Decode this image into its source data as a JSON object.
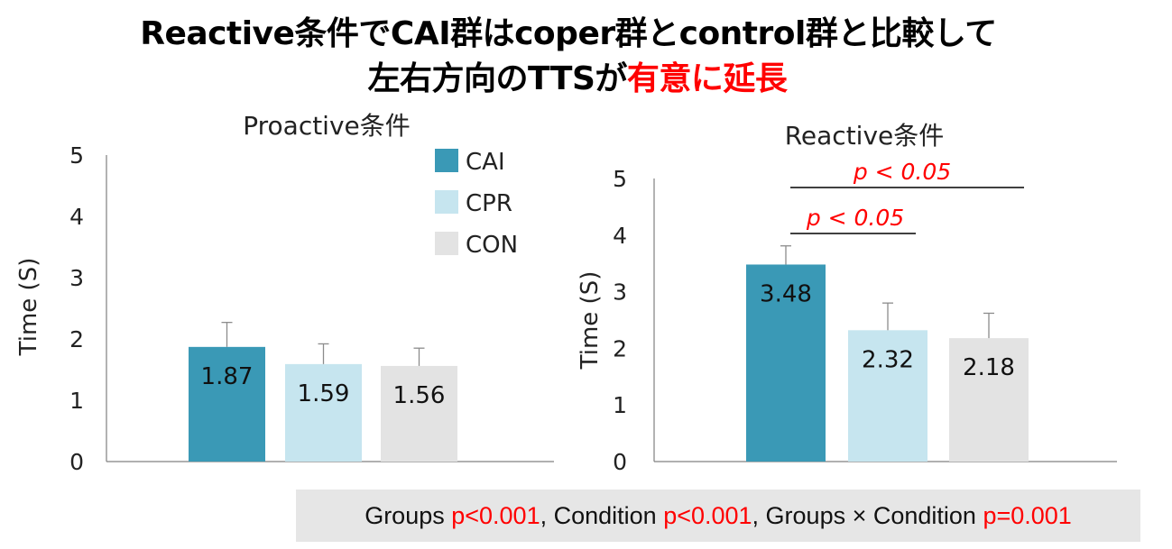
{
  "title": {
    "line1": "Reactive条件でCAI群はcoper群とcontrol群と比較して",
    "line2_prefix": "左右方向のTTSが",
    "line2_highlight": "有意に延長"
  },
  "colors": {
    "CAI": "#3a99b6",
    "CPR": "#c6e5ef",
    "CON": "#e3e3e3",
    "error": "#8c8c8c",
    "sig": "#ff0000"
  },
  "legend": [
    {
      "key": "CAI",
      "label": "CAI"
    },
    {
      "key": "CPR",
      "label": "CPR"
    },
    {
      "key": "CON",
      "label": "CON"
    }
  ],
  "chart_data": [
    {
      "type": "bar",
      "title": "Proactive条件",
      "ylabel": "Time (S)",
      "ylim": [
        0,
        5
      ],
      "yticks": [
        0,
        1,
        2,
        3,
        4,
        5
      ],
      "categories": [
        "CAI",
        "CPR",
        "CON"
      ],
      "values": [
        1.87,
        1.59,
        1.56
      ],
      "error_upper": [
        2.27,
        1.92,
        1.85
      ],
      "value_labels": [
        "1.87",
        "1.59",
        "1.56"
      ],
      "annotations": []
    },
    {
      "type": "bar",
      "title": "Reactive条件",
      "ylabel": "Time (S)",
      "ylim": [
        0,
        5
      ],
      "yticks": [
        0,
        1,
        2,
        3,
        4,
        5
      ],
      "categories": [
        "CAI",
        "CPR",
        "CON"
      ],
      "values": [
        3.48,
        2.32,
        2.18
      ],
      "error_upper": [
        3.81,
        2.8,
        2.62
      ],
      "value_labels": [
        "3.48",
        "2.32",
        "2.18"
      ],
      "annotations": [
        {
          "text": "p < 0.05",
          "from": "CAI",
          "to": "CON"
        },
        {
          "text": "p < 0.05",
          "from": "CAI",
          "to": "CPR"
        }
      ]
    }
  ],
  "footer": {
    "groups_label": "Groups ",
    "groups_p": "p<0.001",
    "condition_label": ", Condition ",
    "condition_p": "p<0.001",
    "interaction_label": ", Groups × Condition ",
    "interaction_p": "p=0.001"
  }
}
